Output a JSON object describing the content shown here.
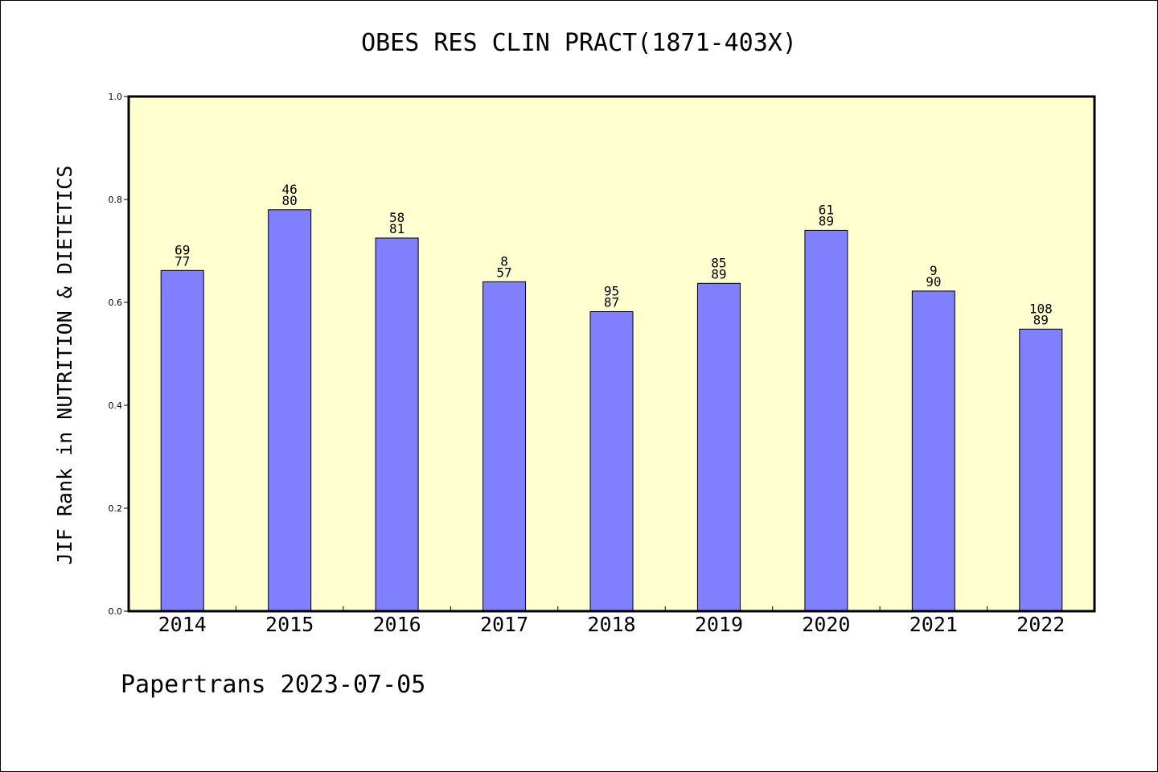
{
  "chart_data": {
    "type": "bar",
    "title": "OBES RES CLIN PRACT(1871-403X)",
    "ylabel": "JIF Rank in NUTRITION & DIETETICS",
    "xlabel": "",
    "categories": [
      "2014",
      "2015",
      "2016",
      "2017",
      "2018",
      "2019",
      "2020",
      "2021",
      "2022"
    ],
    "values": [
      0.662,
      0.78,
      0.725,
      0.64,
      0.582,
      0.637,
      0.74,
      0.622,
      0.548
    ],
    "rank": [
      "69",
      "46",
      "58",
      "8",
      "95",
      "85",
      "61",
      "9",
      "108"
    ],
    "total": [
      "77",
      "80",
      "81",
      "57",
      "87",
      "89",
      "89",
      "90",
      "89"
    ],
    "ylim": [
      0,
      1.0
    ],
    "yticks": [
      "0.0",
      "0.2",
      "0.4",
      "0.6",
      "0.8",
      "1.0"
    ],
    "grid": false,
    "colors": {
      "bar": "#8080ff",
      "plot_background": "#ffffd0",
      "axis": "#000000"
    }
  },
  "footer": {
    "text": "Papertrans 2023-07-05"
  }
}
